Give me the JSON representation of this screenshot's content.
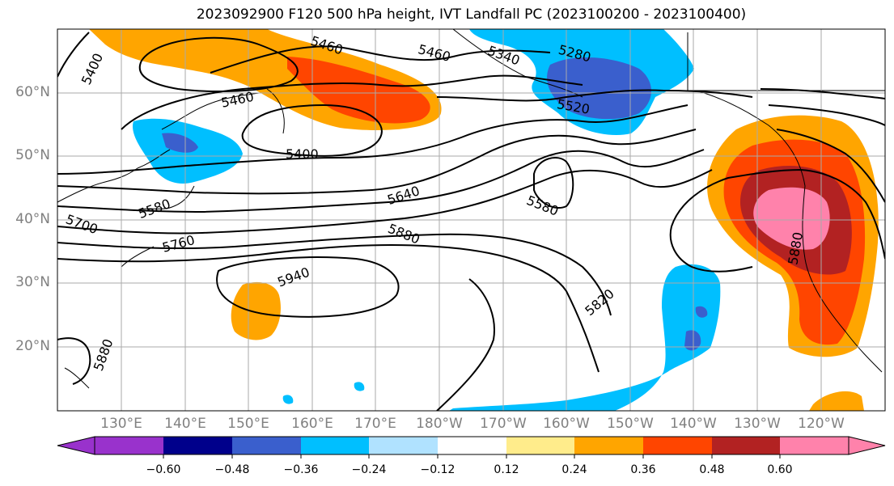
{
  "title": "2023092900 F120 500 hPa height, IVT Landfall PC (2023100200 - 2023100400)",
  "lat_labels": [
    "60°N",
    "50°N",
    "40°N",
    "30°N",
    "20°N"
  ],
  "lon_labels": [
    "130°E",
    "140°E",
    "150°E",
    "160°E",
    "170°E",
    "180°W",
    "170°W",
    "160°W",
    "150°W",
    "140°W",
    "130°W",
    "120°W"
  ],
  "contour_labels": [
    "5400",
    "5460",
    "5460",
    "5340",
    "5280",
    "5460",
    "5520",
    "5400",
    "5580",
    "5640",
    "5580",
    "5700",
    "5760",
    "5880",
    "5940",
    "5820",
    "5880",
    "5880"
  ],
  "colorbar": {
    "ticks": [
      "−0.60",
      "−0.48",
      "−0.36",
      "−0.24",
      "−0.12",
      "0.12",
      "0.24",
      "0.36",
      "0.48",
      "0.60"
    ],
    "colors": [
      "#9932CC",
      "#00008B",
      "#3A5FCD",
      "#00BFFF",
      "#B0E2FF",
      "#FFFFFF",
      "#FFEC8B",
      "#FFA500",
      "#FF4500",
      "#B22222",
      "#FF82AB"
    ]
  }
}
